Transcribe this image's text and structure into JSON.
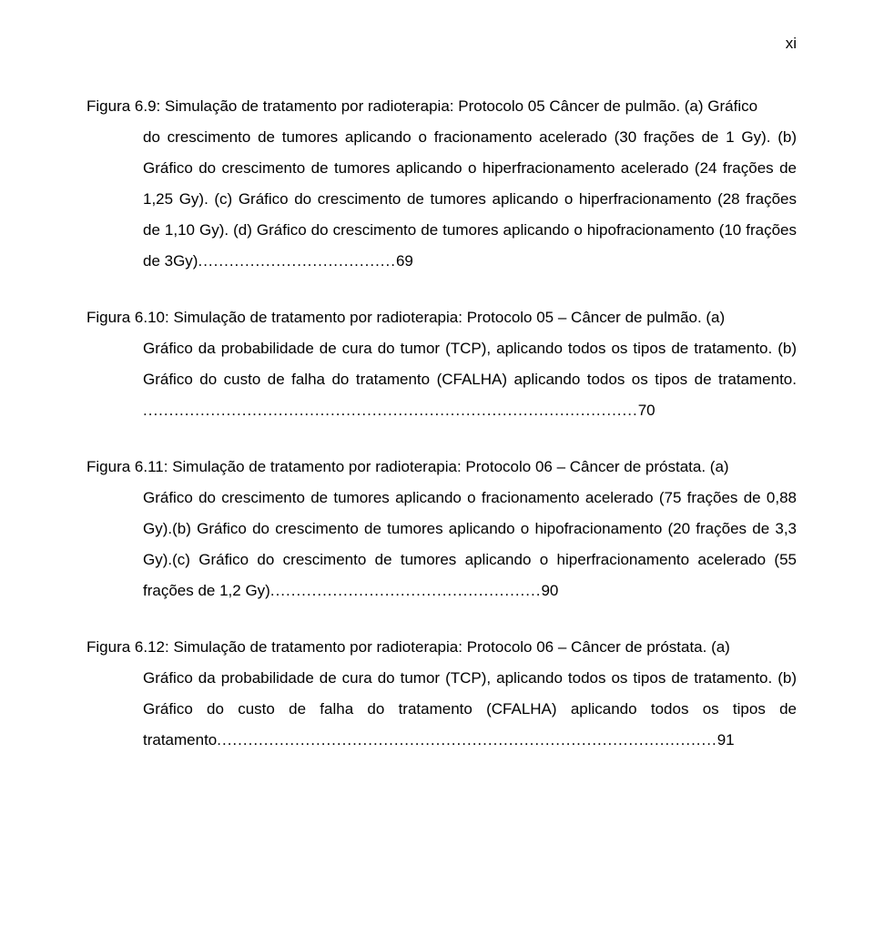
{
  "page_number": "xi",
  "entries": [
    {
      "label": "Figura 6.9: ",
      "desc_first": "Simulação de tratamento por radioterapia: Protocolo 05 Câncer de pulmão. (a) Gráfico",
      "desc_rest": "do crescimento de tumores aplicando o fracionamento acelerado (30 frações de 1 Gy). (b) Gráfico do crescimento de tumores aplicando o hiperfracionamento acelerado (24 frações de 1,25 Gy). (c) Gráfico do crescimento de tumores aplicando o hiperfracionamento (28 frações de 1,10 Gy). (d) Gráfico do crescimento de tumores aplicando o hipofracionamento (10 frações de 3Gy)",
      "dots": "......................................",
      "pg": "69"
    },
    {
      "label": "Figura 6.10: ",
      "desc_first": "Simulação de tratamento por radioterapia: Protocolo 05 – Câncer de pulmão. (a)",
      "desc_rest": "Gráfico da probabilidade de cura do tumor (TCP), aplicando todos os tipos de tratamento. (b) Gráfico do custo de falha do tratamento (CFALHA) aplicando todos os tipos de tratamento. ",
      "dots": "...............................................................................................",
      "pg": "70"
    },
    {
      "label": "Figura 6.11: ",
      "desc_first": "Simulação de tratamento por radioterapia: Protocolo 06 – Câncer de próstata. (a)",
      "desc_rest": "Gráfico do crescimento de tumores aplicando o fracionamento acelerado (75 frações de 0,88 Gy).(b) Gráfico do crescimento de tumores aplicando o hipofracionamento (20 frações de 3,3 Gy).(c) Gráfico do crescimento de tumores aplicando o hiperfracionamento acelerado (55 frações de 1,2 Gy)",
      "dots": "....................................................",
      "pg": "90"
    },
    {
      "label": "Figura 6.12: ",
      "desc_first": "Simulação de tratamento por radioterapia: Protocolo 06 – Câncer de próstata. (a)",
      "desc_rest": "Gráfico da probabilidade de cura do tumor (TCP), aplicando todos os tipos de tratamento. (b) Gráfico do custo de falha do tratamento (CFALHA) aplicando todos os tipos de tratamento",
      "dots": "................................................................................................",
      "pg": "91"
    }
  ]
}
